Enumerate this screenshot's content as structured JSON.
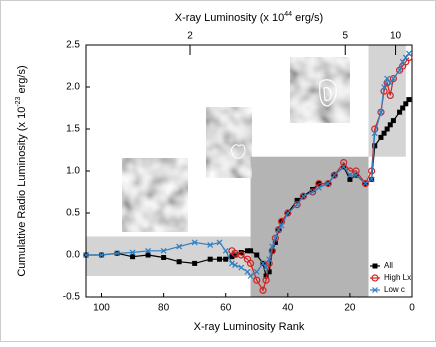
{
  "chart_data": {
    "type": "line",
    "x_label": "X-ray Luminosity Rank",
    "y_label": [
      "Cumulative Radio Luminosity (x 10",
      "-23",
      " erg/s)"
    ],
    "x2_label": [
      "X-ray Luminosity (x 10",
      "44",
      " erg/s)"
    ],
    "x": [
      105,
      100,
      95,
      90,
      85,
      80,
      75,
      70,
      65,
      62,
      60,
      58,
      57,
      55,
      53,
      52,
      50,
      48,
      47,
      46,
      45,
      44,
      43,
      42,
      40,
      37,
      35,
      32,
      30,
      27,
      25,
      22,
      20,
      18,
      15,
      13,
      12,
      10,
      9,
      8,
      7,
      6,
      4,
      3,
      2,
      1
    ],
    "series": [
      {
        "name": "All",
        "color": "#000000",
        "marker": "square",
        "values": [
          0,
          0,
          0.02,
          -0.02,
          0,
          -0.03,
          -0.08,
          -0.1,
          -0.05,
          -0.05,
          -0.05,
          -0.02,
          0,
          0.03,
          0.05,
          0.05,
          0,
          -0.1,
          -0.25,
          -0.2,
          0.05,
          0.15,
          0.3,
          0.4,
          0.5,
          0.65,
          0.7,
          0.78,
          0.85,
          0.85,
          0.95,
          1.05,
          0.9,
          0.95,
          0.85,
          0.9,
          1.3,
          1.4,
          1.45,
          1.5,
          1.55,
          1.6,
          1.7,
          1.75,
          1.8,
          1.85
        ]
      },
      {
        "name": "High Lx",
        "color": "#d62020",
        "marker": "circle",
        "values": [
          null,
          null,
          null,
          null,
          null,
          null,
          null,
          null,
          null,
          null,
          null,
          0.05,
          0.02,
          0,
          -0.05,
          -0.1,
          -0.3,
          -0.42,
          -0.3,
          -0.1,
          0.05,
          0.2,
          0.3,
          0.4,
          0.5,
          0.6,
          0.7,
          0.75,
          0.85,
          0.85,
          0.95,
          1.1,
          1.0,
          1.0,
          0.85,
          1.0,
          1.5,
          1.7,
          1.95,
          2.05,
          1.9,
          2.1,
          2.2,
          2.25,
          2.3,
          2.35
        ]
      },
      {
        "name": "Low c",
        "color": "#2f7fc1",
        "marker": "x",
        "values": [
          0,
          0,
          0.02,
          0.03,
          0.05,
          0.05,
          0.1,
          0.15,
          0.12,
          0.15,
          0.05,
          -0.1,
          -0.12,
          -0.15,
          -0.2,
          -0.25,
          -0.2,
          -0.1,
          -0.15,
          -0.05,
          0.1,
          0.2,
          0.3,
          0.35,
          0.5,
          0.6,
          0.7,
          0.75,
          0.8,
          0.85,
          0.95,
          1.05,
          0.95,
          0.95,
          0.85,
          0.9,
          1.45,
          1.7,
          2.0,
          2.1,
          2.05,
          2.1,
          2.2,
          2.3,
          2.35,
          2.4
        ]
      }
    ],
    "xlim": [
      105,
      0
    ],
    "ylim": [
      -0.5,
      2.5
    ],
    "xticks": [
      100,
      80,
      60,
      40,
      20,
      0
    ],
    "yticks": [
      {
        "value": -0.5,
        "label": "-0.5"
      },
      {
        "value": 0,
        "label": "0.0"
      },
      0.5,
      {
        "value": 1,
        "label": "1.0"
      },
      1.5,
      {
        "value": 2,
        "label": "2.0"
      },
      2.5
    ],
    "x2ticks": [
      {
        "value": 71.5,
        "label": "2"
      },
      {
        "value": 21.5,
        "label": "5"
      },
      {
        "value": 5.3,
        "label": "10"
      }
    ],
    "regions": [
      {
        "xlim": [
          105,
          52
        ],
        "ylim": [
          -0.25,
          0.22
        ],
        "color": "#d4d4d4"
      },
      {
        "xlim": [
          52,
          14
        ],
        "ylim": [
          -0.5,
          1.17
        ],
        "color": "#b4b4b4"
      },
      {
        "xlim": [
          14,
          2
        ],
        "ylim": [
          1.17,
          2.5
        ],
        "color": "#d4d4d4"
      }
    ],
    "legend": "lower right"
  }
}
